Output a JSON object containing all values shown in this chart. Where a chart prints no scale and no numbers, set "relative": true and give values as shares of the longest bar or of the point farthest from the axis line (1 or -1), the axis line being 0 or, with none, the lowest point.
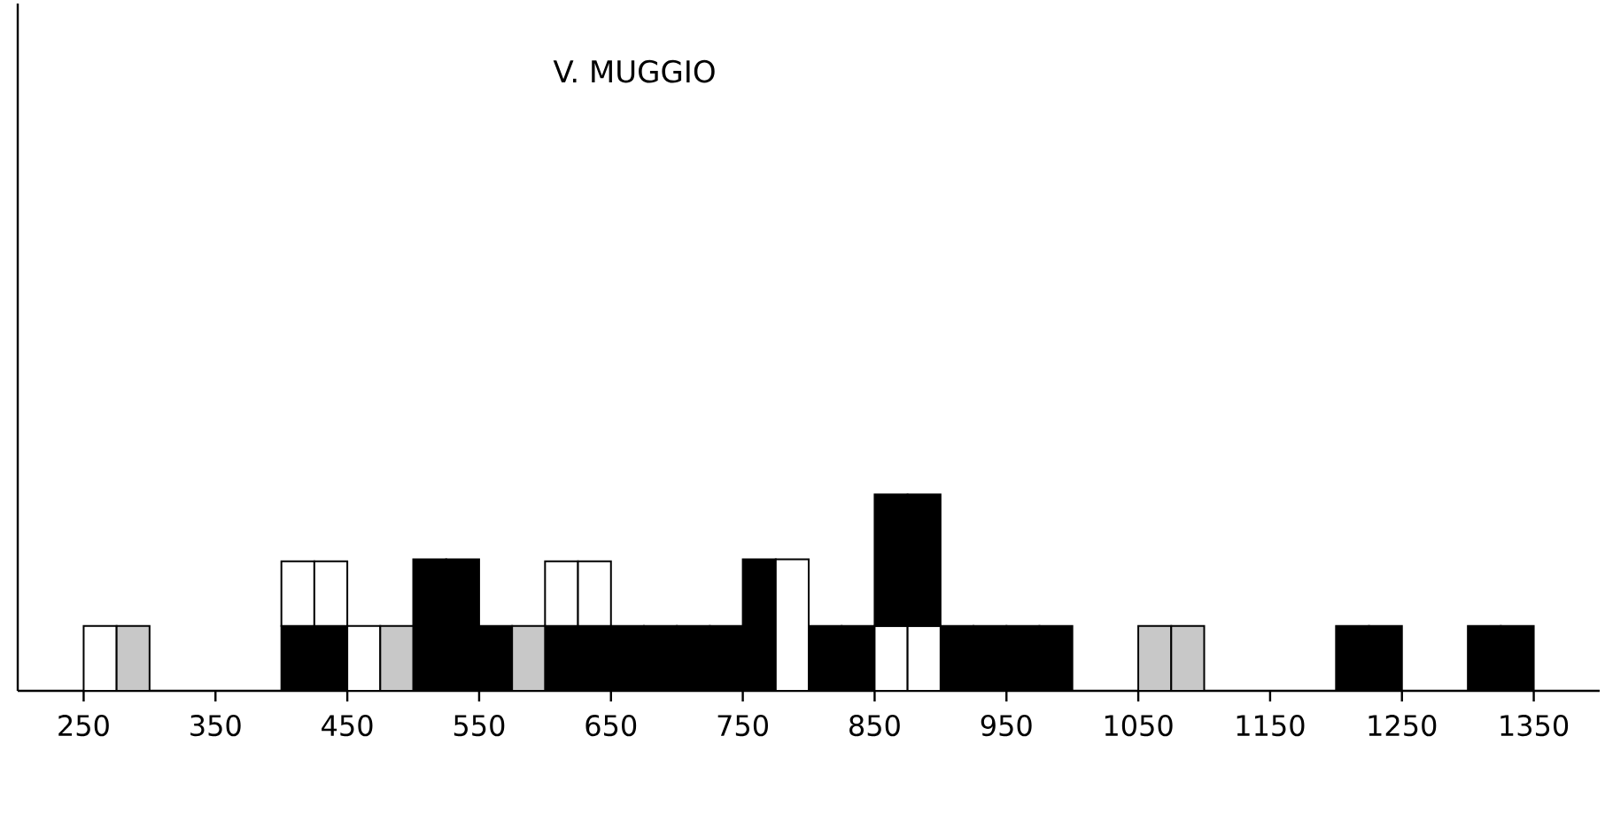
{
  "chart_data": {
    "type": "bar",
    "title": "V. MUGGIO",
    "relative": true,
    "stacked": true,
    "xlim": [
      200,
      1400
    ],
    "xticks": [
      250,
      350,
      450,
      550,
      650,
      750,
      850,
      950,
      1050,
      1150,
      1250,
      1350
    ],
    "x": [
      262.5,
      287.5,
      312.5,
      337.5,
      362.5,
      387.5,
      412.5,
      437.5,
      462.5,
      487.5,
      512.5,
      537.5,
      562.5,
      587.5,
      612.5,
      637.5,
      662.5,
      687.5,
      712.5,
      737.5,
      762.5,
      787.5,
      812.5,
      837.5,
      862.5,
      887.5,
      912.5,
      937.5,
      962.5,
      987.5,
      1012.5,
      1037.5,
      1062.5,
      1087.5,
      1112.5,
      1137.5,
      1162.5,
      1187.5,
      1212.5,
      1237.5,
      1262.5,
      1287.5,
      1312.5,
      1337.5
    ],
    "series": [
      {
        "color": "#000000",
        "values": [
          null,
          null,
          null,
          null,
          null,
          null,
          0.33,
          0.33,
          null,
          null,
          0.67,
          0.67,
          0.33,
          null,
          0.33,
          0.33,
          0.33,
          0.33,
          0.33,
          0.33,
          0.67,
          null,
          0.33,
          0.33,
          null,
          null,
          0.33,
          0.33,
          0.33,
          0.33,
          null,
          null,
          null,
          null,
          null,
          null,
          null,
          null,
          0.33,
          0.33,
          null,
          null,
          0.33,
          0.33
        ]
      },
      {
        "color": "#ffffff",
        "values": [
          0.33,
          null,
          null,
          null,
          null,
          null,
          0.33,
          0.33,
          0.33,
          null,
          null,
          null,
          null,
          null,
          0.33,
          0.33,
          null,
          null,
          null,
          null,
          null,
          0.67,
          null,
          null,
          0.33,
          0.33,
          null,
          null,
          null,
          null,
          null,
          null,
          null,
          null,
          null,
          null,
          null,
          null,
          null,
          null,
          null,
          null,
          null,
          null
        ]
      },
      {
        "color": "#c8c8c8",
        "values": [
          null,
          0.33,
          null,
          null,
          null,
          null,
          null,
          null,
          null,
          0.33,
          null,
          null,
          null,
          0.33,
          null,
          null,
          null,
          null,
          null,
          null,
          null,
          null,
          null,
          null,
          null,
          null,
          null,
          null,
          null,
          null,
          null,
          null,
          0.33,
          0.33,
          null,
          null,
          null,
          null,
          null,
          null,
          null,
          null,
          null,
          null
        ]
      },
      {
        "color": "#000000",
        "values": [
          null,
          null,
          null,
          null,
          null,
          null,
          null,
          null,
          null,
          null,
          null,
          null,
          null,
          null,
          null,
          null,
          null,
          null,
          null,
          null,
          null,
          null,
          null,
          null,
          0.67,
          0.67,
          null,
          null,
          null,
          null,
          null,
          null,
          null,
          null,
          null,
          null,
          null,
          null,
          null,
          null,
          null,
          null,
          null,
          null
        ]
      }
    ]
  }
}
